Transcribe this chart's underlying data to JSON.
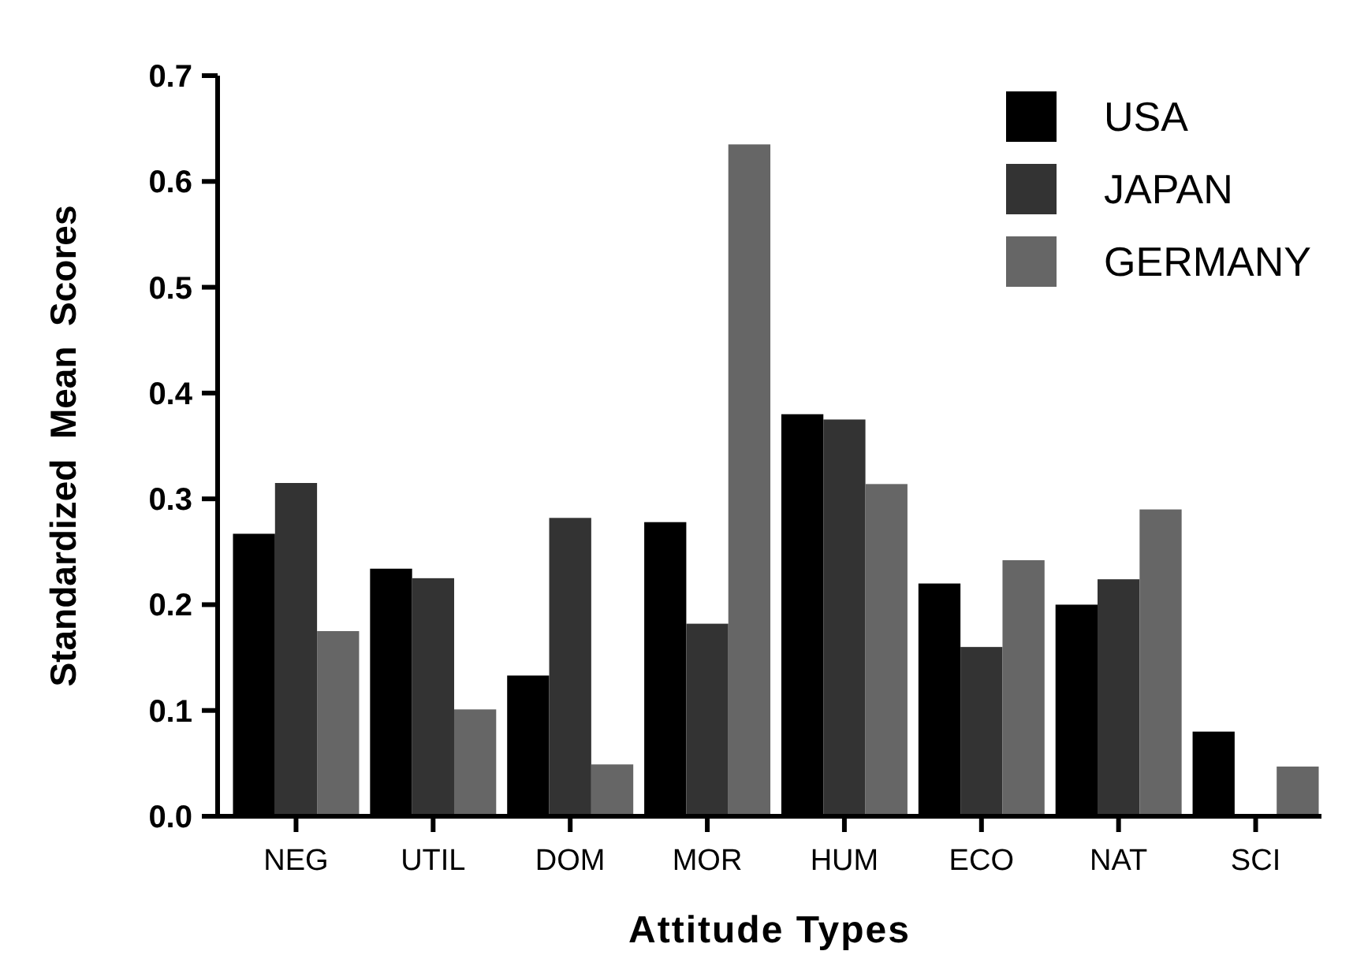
{
  "chart_data": {
    "type": "bar",
    "xlabel": "Attitude Types",
    "ylabel": "Standardized  Mean  Scores",
    "categories": [
      "NEG",
      "UTIL",
      "DOM",
      "MOR",
      "HUM",
      "ECO",
      "NAT",
      "SCI"
    ],
    "series": [
      {
        "name": "USA",
        "color": "#000000",
        "values": [
          0.267,
          0.234,
          0.133,
          0.278,
          0.38,
          0.22,
          0.2,
          0.08
        ]
      },
      {
        "name": "JAPAN",
        "color": "#333333",
        "values": [
          0.315,
          0.225,
          0.282,
          0.182,
          0.375,
          0.16,
          0.224,
          0
        ]
      },
      {
        "name": "GERMANY",
        "color": "#666666",
        "values": [
          0.175,
          0.101,
          0.049,
          0.635,
          0.314,
          0.242,
          0.29,
          0.047
        ]
      }
    ],
    "ylim": [
      0,
      0.7
    ],
    "yticks": [
      {
        "value": 0,
        "label": "0.0"
      },
      0.1,
      0.2,
      0.3,
      0.4,
      0.5,
      0.6,
      0.7
    ],
    "legend": "top right",
    "grid": false
  }
}
